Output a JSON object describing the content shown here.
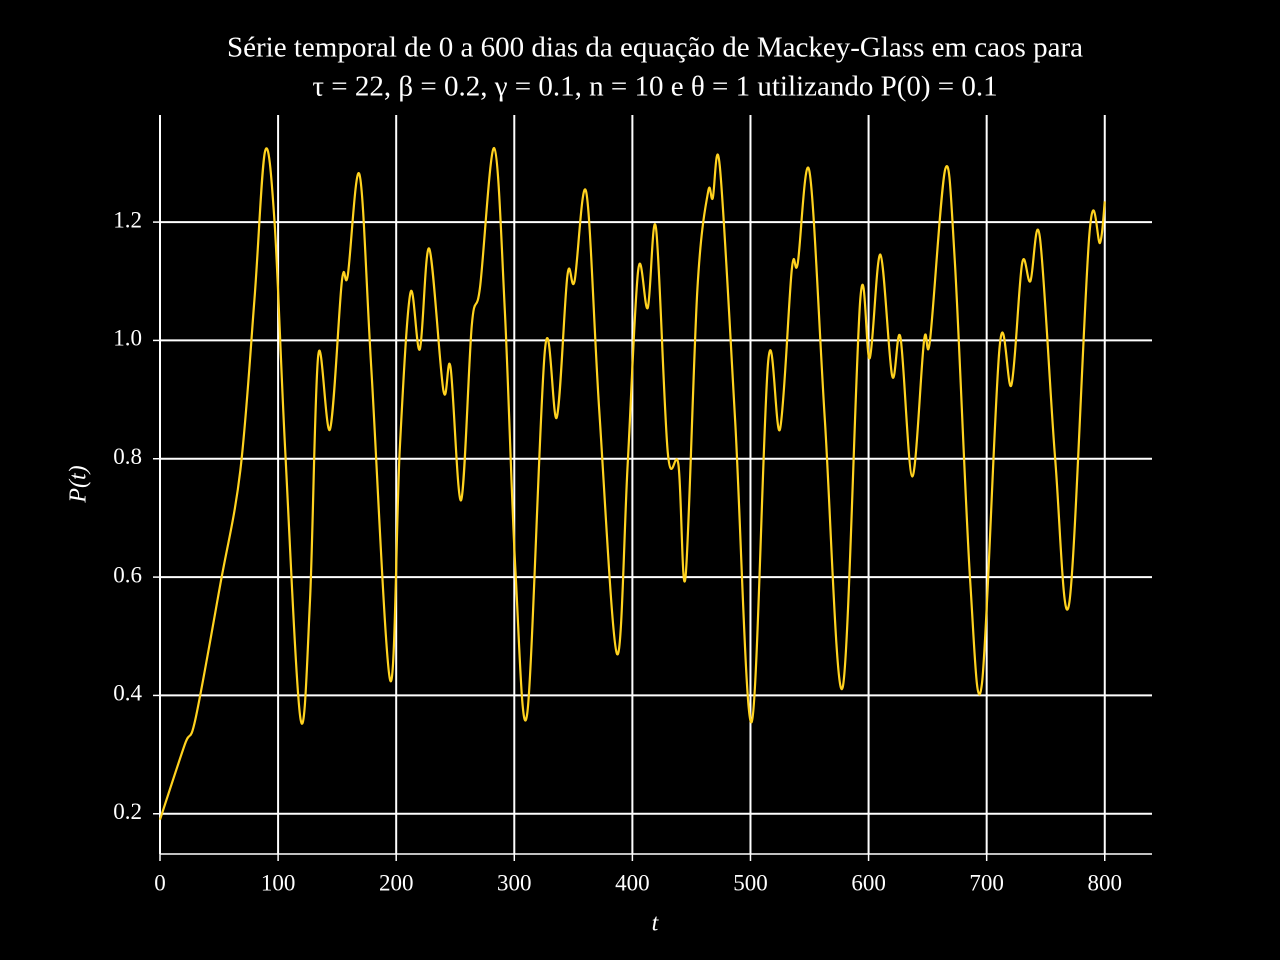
{
  "chart_data": {
    "type": "line",
    "title": [
      "Série temporal de 0 a 600 dias da equação de Mackey-Glass em caos para",
      "τ = 22, β = 0.2, γ = 0.1, n = 10 e θ = 1 utilizando P(0) = 0.1"
    ],
    "x_label": "t",
    "y_label": "P(t)",
    "x": [
      0,
      21,
      30,
      51,
      68,
      80,
      89,
      97,
      106,
      119,
      127,
      134,
      144,
      154,
      159,
      169,
      179,
      195,
      203,
      212,
      220,
      228,
      240,
      246,
      255,
      264,
      271,
      283,
      292,
      301,
      311,
      326,
      336,
      345,
      351,
      361,
      372,
      387,
      396,
      405,
      413,
      420,
      430,
      439,
      445,
      455,
      464,
      468,
      474,
      487,
      501,
      515,
      525,
      535,
      540,
      550,
      563,
      578,
      593,
      601,
      610,
      620,
      627,
      637,
      647,
      652,
      665,
      673,
      686,
      696,
      711,
      721,
      730,
      737,
      745,
      758,
      770,
      787,
      796,
      800
    ],
    "series": [
      {
        "color": "#ffd21f",
        "values": [
          0.19,
          0.317,
          0.36,
          0.587,
          0.78,
          1.07,
          1.32,
          1.2,
          0.815,
          0.36,
          0.56,
          0.975,
          0.85,
          1.1,
          1.11,
          1.28,
          0.95,
          0.425,
          0.815,
          1.08,
          0.985,
          1.155,
          0.915,
          0.955,
          0.73,
          1.025,
          1.09,
          1.325,
          1.05,
          0.61,
          0.37,
          0.985,
          0.87,
          1.11,
          1.1,
          1.25,
          0.88,
          0.47,
          0.79,
          1.12,
          1.055,
          1.19,
          0.81,
          0.79,
          0.6,
          1.085,
          1.25,
          1.24,
          1.295,
          0.865,
          0.355,
          0.965,
          0.85,
          1.12,
          1.13,
          1.285,
          0.865,
          0.413,
          1.07,
          0.97,
          1.145,
          0.94,
          1.005,
          0.77,
          1.0,
          1.0,
          1.29,
          1.135,
          0.595,
          0.42,
          0.99,
          0.925,
          1.13,
          1.1,
          1.175,
          0.8,
          0.557,
          1.18,
          1.165,
          1.235
        ]
      }
    ],
    "xlim": [
      0,
      840
    ],
    "ylim": [
      0.132,
      1.381
    ],
    "xticks": [
      0,
      100,
      200,
      300,
      400,
      500,
      600,
      700,
      800
    ],
    "yticks": [
      0.2,
      0.4,
      0.6,
      0.8,
      {
        "value": 1,
        "label": "1.0"
      },
      1.2
    ],
    "grid": true
  }
}
